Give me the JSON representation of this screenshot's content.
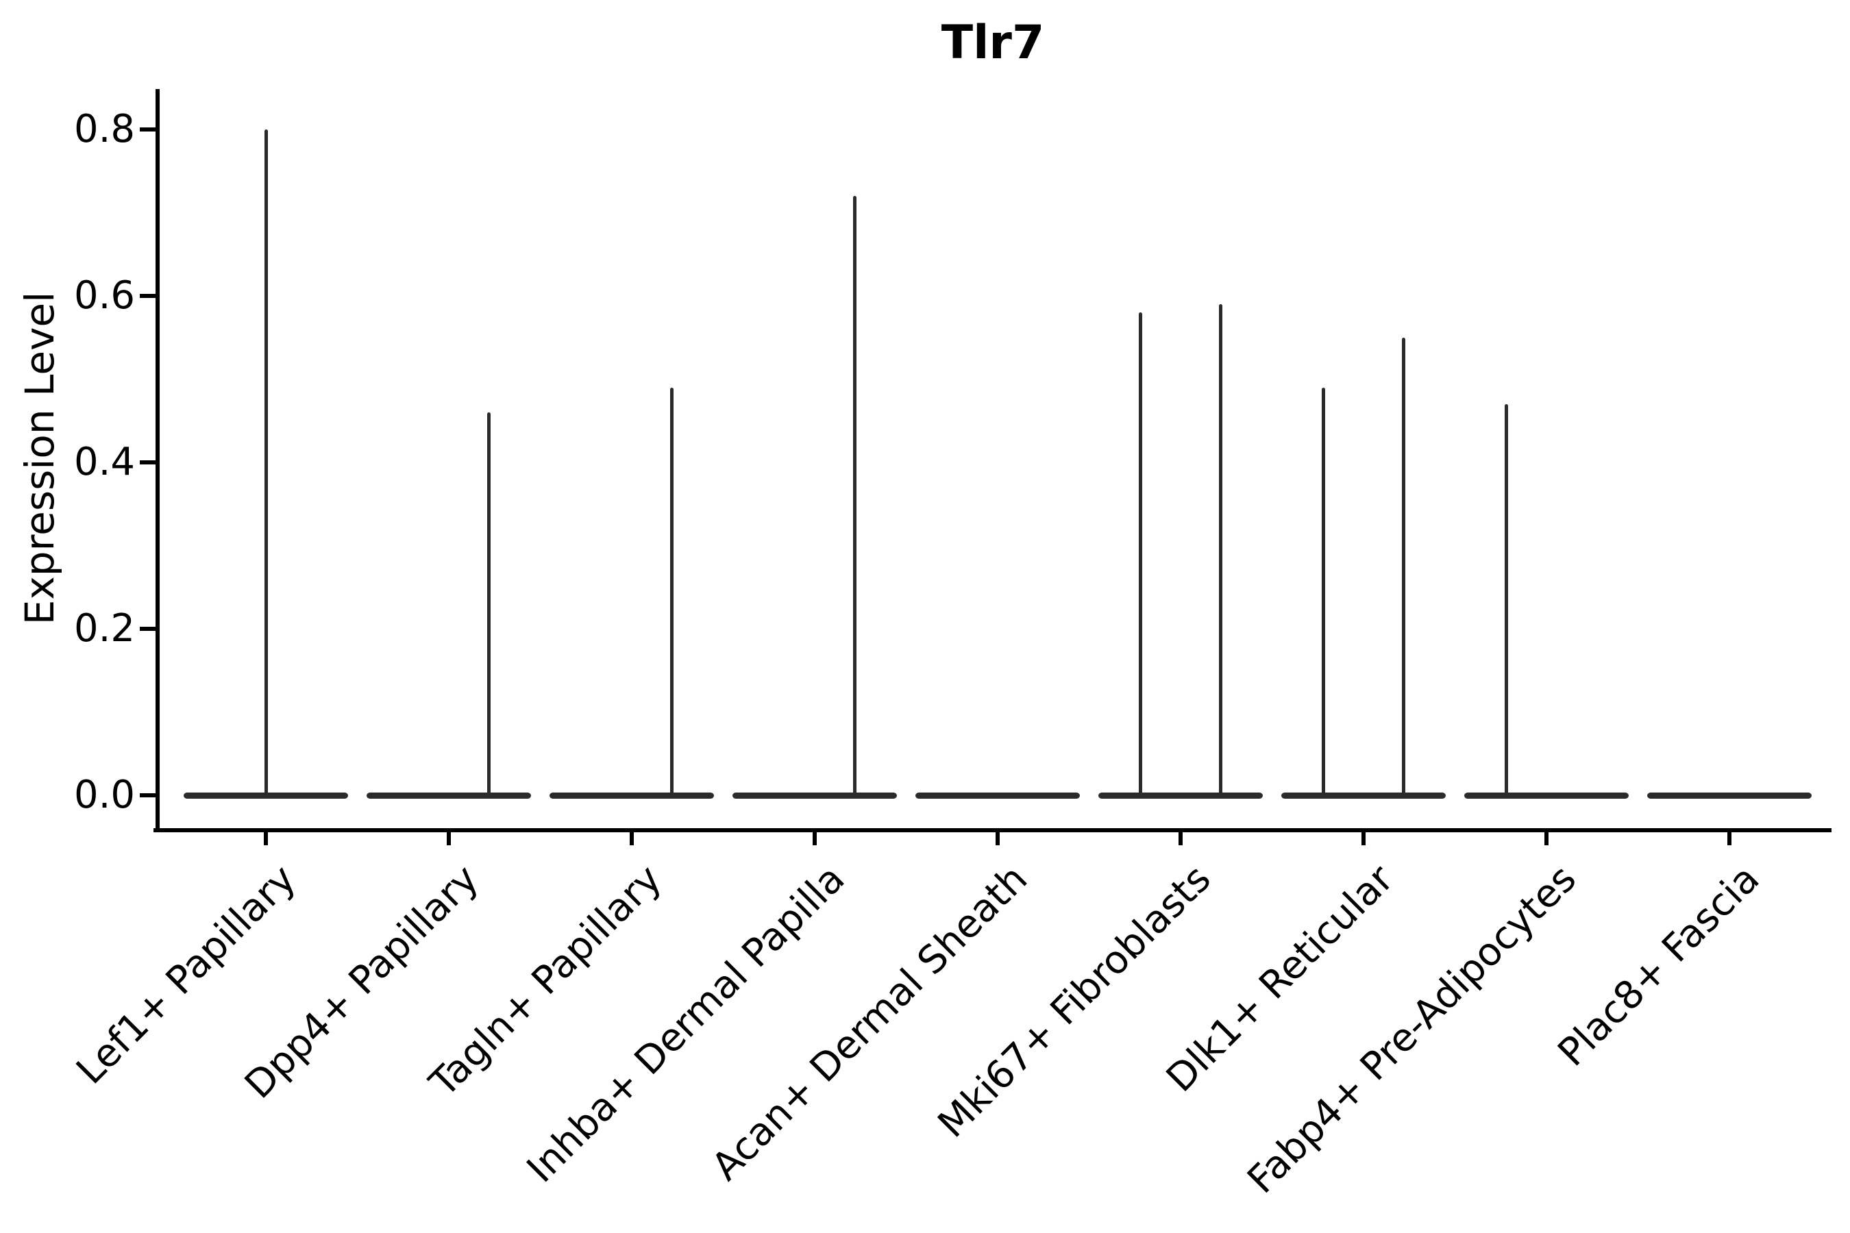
{
  "figure": {
    "background_color": "#ffffff",
    "axis_color": "#000000",
    "violin_color": "#2b2b2b"
  },
  "chart_data": {
    "type": "violin",
    "title": "Tlr7",
    "xlabel": "",
    "ylabel": "Expression Level",
    "ylim": [
      -0.04,
      0.85
    ],
    "yticks": [
      0.0,
      0.2,
      0.4,
      0.6,
      0.8
    ],
    "ytick_labels": [
      "0.0",
      "0.2",
      "0.4",
      "0.6",
      "0.8"
    ],
    "grid": false,
    "legend": "none",
    "xtick_rotation_deg": 45,
    "violin_width_frac": 0.9,
    "categories": [
      "Lef1+ Papillary",
      "Dpp4+ Papillary",
      "Tagln+ Papillary",
      "Inhba+ Dermal Papilla",
      "Acan+ Dermal Sheath",
      "Mki67+ Fibroblasts",
      "Dlk1+ Reticular",
      "Fabp4+ Pre-Adipocytes",
      "Plac8+ Fascia"
    ],
    "description": "Violin plot of Tlr7 expression per fibroblast cluster; density mass is concentrated at 0 (flat baseline pancake per category) with thin vertical density spikes reaching the maximum expression values.",
    "violins": [
      {
        "category": "Lef1+ Papillary",
        "baseline_value": 0.0,
        "spikes": [
          {
            "offset_frac": 0.0,
            "max": 0.8
          }
        ]
      },
      {
        "category": "Dpp4+ Papillary",
        "baseline_value": 0.0,
        "spikes": [
          {
            "offset_frac": 0.22,
            "max": 0.46
          }
        ]
      },
      {
        "category": "Tagln+ Papillary",
        "baseline_value": 0.0,
        "spikes": [
          {
            "offset_frac": 0.22,
            "max": 0.49
          }
        ]
      },
      {
        "category": "Inhba+ Dermal Papilla",
        "baseline_value": 0.0,
        "spikes": [
          {
            "offset_frac": 0.22,
            "max": 0.72
          }
        ]
      },
      {
        "category": "Acan+ Dermal Sheath",
        "baseline_value": 0.0,
        "spikes": []
      },
      {
        "category": "Mki67+ Fibroblasts",
        "baseline_value": 0.0,
        "spikes": [
          {
            "offset_frac": -0.22,
            "max": 0.58
          },
          {
            "offset_frac": 0.22,
            "max": 0.59
          }
        ]
      },
      {
        "category": "Dlk1+ Reticular",
        "baseline_value": 0.0,
        "spikes": [
          {
            "offset_frac": -0.22,
            "max": 0.49
          },
          {
            "offset_frac": 0.22,
            "max": 0.55
          }
        ]
      },
      {
        "category": "Fabp4+ Pre-Adipocytes",
        "baseline_value": 0.0,
        "spikes": [
          {
            "offset_frac": -0.22,
            "max": 0.47
          }
        ]
      },
      {
        "category": "Plac8+ Fascia",
        "baseline_value": 0.0,
        "spikes": []
      }
    ]
  }
}
